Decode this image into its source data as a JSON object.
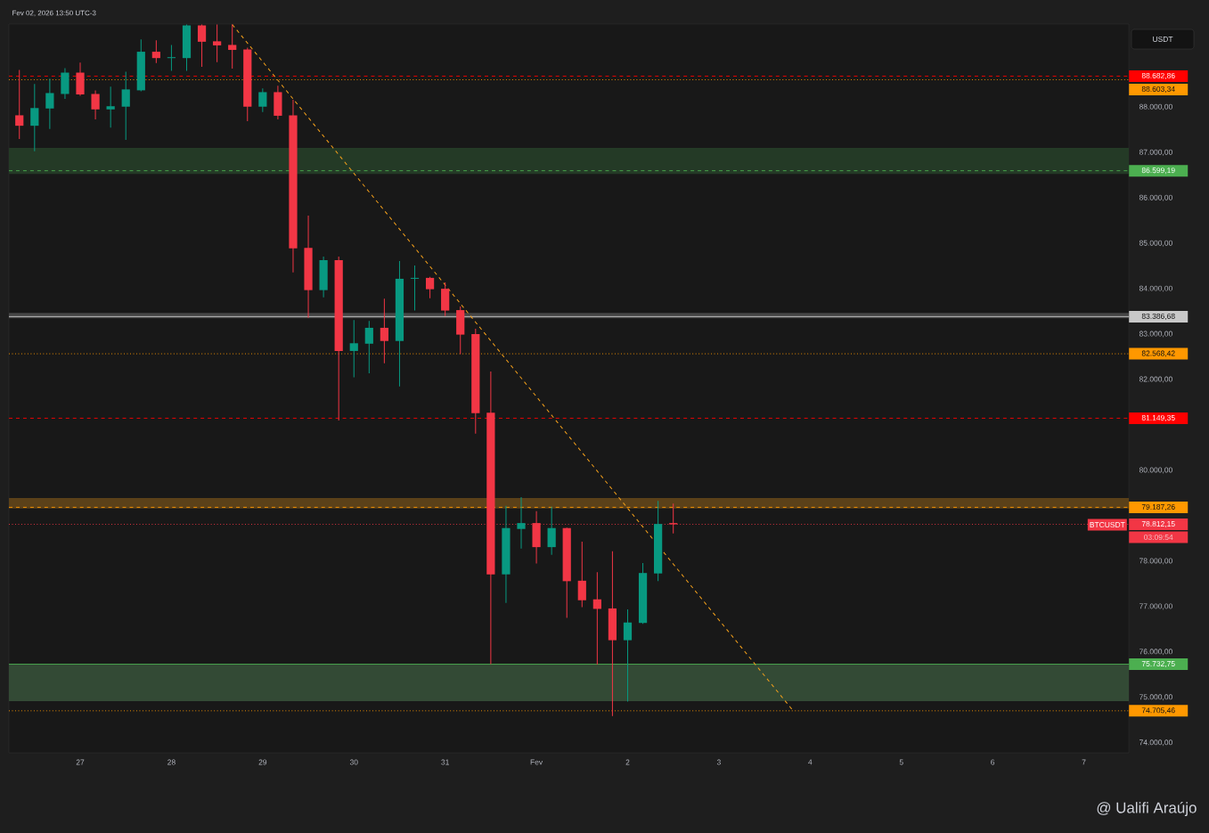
{
  "chart_data": {
    "type": "candlestick",
    "title": "Fev 02, 2026 13:50 UTC-3",
    "x": [
      "2026-01-26T08:00",
      "2026-01-26T12:00",
      "2026-01-26T16:00",
      "2026-01-26T20:00",
      "2026-01-27T00:00",
      "2026-01-27T04:00",
      "2026-01-27T08:00",
      "2026-01-27T12:00",
      "2026-01-27T16:00",
      "2026-01-27T20:00",
      "2026-01-28T00:00",
      "2026-01-28T04:00",
      "2026-01-28T08:00",
      "2026-01-28T12:00",
      "2026-01-28T16:00",
      "2026-01-28T20:00",
      "2026-01-29T00:00",
      "2026-01-29T04:00",
      "2026-01-29T08:00",
      "2026-01-29T12:00",
      "2026-01-29T16:00",
      "2026-01-29T20:00",
      "2026-01-30T00:00",
      "2026-01-30T04:00",
      "2026-01-30T08:00",
      "2026-01-30T12:00",
      "2026-01-30T16:00",
      "2026-01-30T20:00",
      "2026-01-31T00:00",
      "2026-01-31T04:00",
      "2026-01-31T08:00",
      "2026-01-31T12:00",
      "2026-01-31T16:00",
      "2026-01-31T20:00",
      "2026-02-01T00:00",
      "2026-02-01T04:00",
      "2026-02-01T08:00",
      "2026-02-01T12:00",
      "2026-02-01T16:00",
      "2026-02-01T20:00",
      "2026-02-02T00:00",
      "2026-02-02T04:00",
      "2026-02-02T08:00",
      "2026-02-02T12:00"
    ],
    "ohlc": [
      [
        87820,
        88820,
        87300,
        87590
      ],
      [
        87590,
        88510,
        87030,
        87980
      ],
      [
        87970,
        88630,
        87520,
        88310
      ],
      [
        88290,
        88860,
        88180,
        88760
      ],
      [
        88760,
        88980,
        88250,
        88280
      ],
      [
        88290,
        88370,
        87730,
        87950
      ],
      [
        87950,
        88450,
        87550,
        88020
      ],
      [
        88010,
        88780,
        87280,
        88390
      ],
      [
        88370,
        89490,
        88350,
        89220
      ],
      [
        89220,
        89470,
        88970,
        89080
      ],
      [
        89080,
        89370,
        88800,
        89100
      ],
      [
        89080,
        89820,
        88800,
        89800
      ],
      [
        89800,
        89820,
        88890,
        89440
      ],
      [
        89450,
        89820,
        88990,
        89360
      ],
      [
        89370,
        89820,
        88850,
        89260
      ],
      [
        89270,
        89310,
        87690,
        88010
      ],
      [
        88010,
        88410,
        87890,
        88330
      ],
      [
        88330,
        88470,
        87730,
        87810
      ],
      [
        87820,
        88160,
        84360,
        84890
      ],
      [
        84900,
        85610,
        83360,
        83970
      ],
      [
        83970,
        84710,
        83810,
        84630
      ],
      [
        84630,
        84710,
        81100,
        82630
      ],
      [
        82630,
        83310,
        82050,
        82800
      ],
      [
        82790,
        83290,
        82140,
        83140
      ],
      [
        83140,
        83780,
        82360,
        82850
      ],
      [
        82850,
        84610,
        81850,
        84220
      ],
      [
        84220,
        84510,
        83520,
        84240
      ],
      [
        84240,
        84260,
        83790,
        83990
      ],
      [
        84000,
        84140,
        83400,
        83520
      ],
      [
        83530,
        83610,
        82560,
        82990
      ],
      [
        83000,
        83120,
        80810,
        81260
      ],
      [
        81270,
        82180,
        75730,
        77710
      ],
      [
        77710,
        79220,
        77080,
        78730
      ],
      [
        78710,
        79410,
        78280,
        78840
      ],
      [
        78840,
        79100,
        77950,
        78310
      ],
      [
        78310,
        79200,
        78140,
        78730
      ],
      [
        78730,
        78740,
        76750,
        77560
      ],
      [
        77570,
        78430,
        76990,
        77140
      ],
      [
        77160,
        77760,
        75720,
        76950
      ],
      [
        76960,
        78220,
        74590,
        76260
      ],
      [
        76260,
        76940,
        74910,
        76650
      ],
      [
        76640,
        77960,
        76620,
        77740
      ],
      [
        77730,
        79330,
        77560,
        78820
      ],
      [
        78840,
        79270,
        78610,
        78812.15
      ]
    ],
    "colors": [
      "#f23645",
      "#089981",
      "#089981",
      "#089981",
      "#f23645",
      "#f23645",
      "#089981",
      "#089981",
      "#089981",
      "#f23645",
      "#089981",
      "#089981",
      "#f23645",
      "#f23645",
      "#f23645",
      "#f23645",
      "#089981",
      "#f23645",
      "#f23645",
      "#f23645",
      "#089981",
      "#f23645",
      "#089981",
      "#089981",
      "#f23645",
      "#089981",
      "#089981",
      "#f23645",
      "#f23645",
      "#f23645",
      "#f23645",
      "#f23645",
      "#089981",
      "#089981",
      "#f23645",
      "#089981",
      "#f23645",
      "#f23645",
      "#f23645",
      "#f23645",
      "#089981",
      "#089981",
      "#089981",
      "#f23645"
    ],
    "series": [
      {
        "type": "line",
        "x": [
          "2026-01-28T16:00",
          "2026-02-03T19:30"
        ],
        "values": [
          89820,
          74710
        ],
        "color": "#f7a21b",
        "line_style": "dashed"
      }
    ],
    "xlim": [
      "2026-01-26T05:15",
      "2026-02-07T11:50"
    ],
    "xticks": [
      {
        "value": "2026-01-27",
        "label": "27"
      },
      {
        "value": "2026-01-28",
        "label": "28"
      },
      {
        "value": "2026-01-29",
        "label": "29"
      },
      {
        "value": "2026-01-30",
        "label": "30"
      },
      {
        "value": "2026-01-31",
        "label": "31"
      },
      {
        "value": "2026-02-01",
        "label": "Fev"
      },
      {
        "value": "2026-02-02",
        "label": "2"
      },
      {
        "value": "2026-02-03",
        "label": "3"
      },
      {
        "value": "2026-02-04",
        "label": "4"
      },
      {
        "value": "2026-02-05",
        "label": "5"
      },
      {
        "value": "2026-02-06",
        "label": "6"
      },
      {
        "value": "2026-02-07",
        "label": "7"
      }
    ],
    "ylim": [
      73780,
      89830
    ],
    "yticks": [
      {
        "value": 74000,
        "label": "74.000,00"
      },
      {
        "value": 75000,
        "label": "75.000,00"
      },
      {
        "value": 76000,
        "label": "76.000,00"
      },
      {
        "value": 77000,
        "label": "77.000,00"
      },
      {
        "value": 78000,
        "label": "78.000,00"
      },
      {
        "value": 80000,
        "label": "80.000,00"
      },
      {
        "value": 82000,
        "label": "82.000,00"
      },
      {
        "value": 83000,
        "label": "83.000,00"
      },
      {
        "value": 84000,
        "label": "84.000,00"
      },
      {
        "value": 85000,
        "label": "85.000,00"
      },
      {
        "value": 86000,
        "label": "86.000,00"
      },
      {
        "value": 87000,
        "label": "87.000,00"
      },
      {
        "value": 88000,
        "label": "88.000,00"
      }
    ],
    "bands": [
      {
        "axis": "y",
        "from": 86530,
        "to": 87100,
        "color": "#243a26"
      },
      {
        "axis": "y",
        "from": 83350,
        "to": 83470,
        "color": "#454545"
      },
      {
        "axis": "y",
        "from": 79160,
        "to": 79390,
        "color": "#5b4119"
      },
      {
        "axis": "y",
        "from": 74920,
        "to": 75730,
        "color": "#334a35"
      }
    ],
    "ref_lines": [
      {
        "axis": "y",
        "value": 88682.86,
        "label": "88.682,86",
        "color": "#ff0000",
        "line_style": "dashed"
      },
      {
        "axis": "y",
        "value": 88603.34,
        "label": "88.603,34",
        "color": "#ff9800",
        "line_style": "dotted"
      },
      {
        "axis": "y",
        "value": 86599.19,
        "label": "86.599,19",
        "color": "#4caf50",
        "line_style": "dashed"
      },
      {
        "axis": "y",
        "value": 83386.68,
        "label": "83.386,68",
        "color": "#c8c8c8",
        "line_style": "solid"
      },
      {
        "axis": "y",
        "value": 82568.42,
        "label": "82.568,42",
        "color": "#ff9800",
        "line_style": "dotted"
      },
      {
        "axis": "y",
        "value": 81149.35,
        "label": "81.149,35",
        "color": "#ff0000",
        "line_style": "dashed"
      },
      {
        "axis": "y",
        "value": 79187.26,
        "label": "79.187,26",
        "color": "#ff9800",
        "line_style": "dashed"
      },
      {
        "axis": "y",
        "value": 78812.15,
        "label": "78.812,15",
        "color": "#f23645",
        "line_style": "dotted"
      },
      {
        "axis": "y",
        "value": 75732.75,
        "label": "75.732,75",
        "color": "#4caf50",
        "line_style": "solid"
      },
      {
        "axis": "y",
        "value": 74705.46,
        "label": "74.705,46",
        "color": "#ff9800",
        "line_style": "dotted"
      }
    ],
    "annotations": [
      "BTCUSDT",
      "03:09:54",
      "USDT",
      "@ Ualifi Araújo"
    ]
  }
}
